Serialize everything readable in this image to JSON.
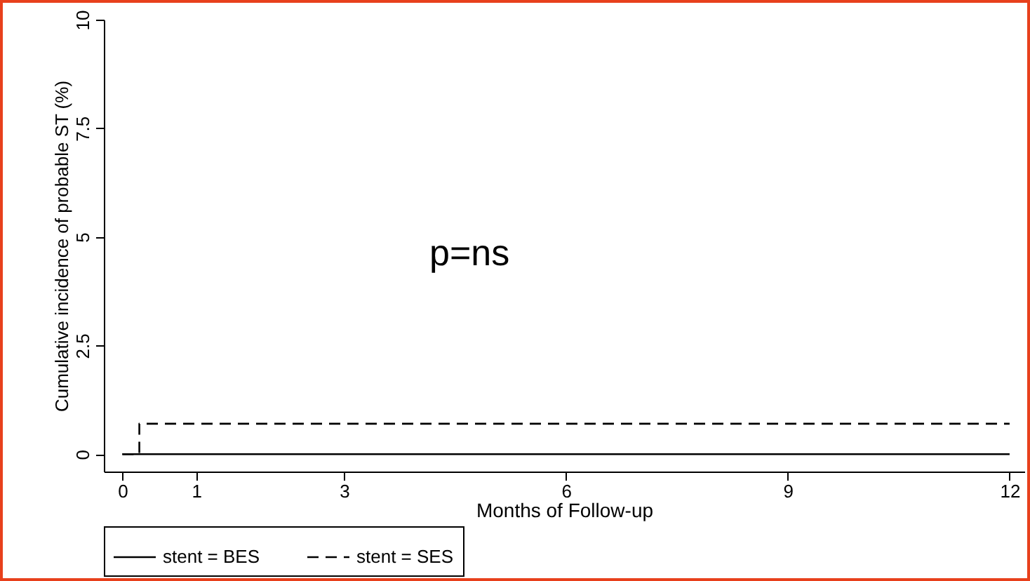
{
  "chart_data": {
    "type": "step",
    "xlabel": "Months of Follow-up",
    "ylabel": "Cumulative incidence of probable ST (%)",
    "xlim": [
      -0.25,
      12.2
    ],
    "xticks": [
      0,
      1,
      3,
      6,
      9,
      12
    ],
    "ylim": [
      -0.4,
      10
    ],
    "yticks": [
      0,
      2.5,
      5,
      7.5,
      10
    ],
    "series": [
      {
        "name": "stent = BES",
        "color": "#000000",
        "line_style": "solid",
        "x": [
          0,
          12
        ],
        "values": [
          0,
          0
        ]
      },
      {
        "name": "stent = SES",
        "color": "#000000",
        "line_style": "dashed",
        "x": [
          0,
          0.23,
          12
        ],
        "values": [
          0,
          0.7,
          0.7
        ]
      }
    ],
    "annotations": [
      "p=ns"
    ],
    "grid": false,
    "legend": "bottom"
  }
}
